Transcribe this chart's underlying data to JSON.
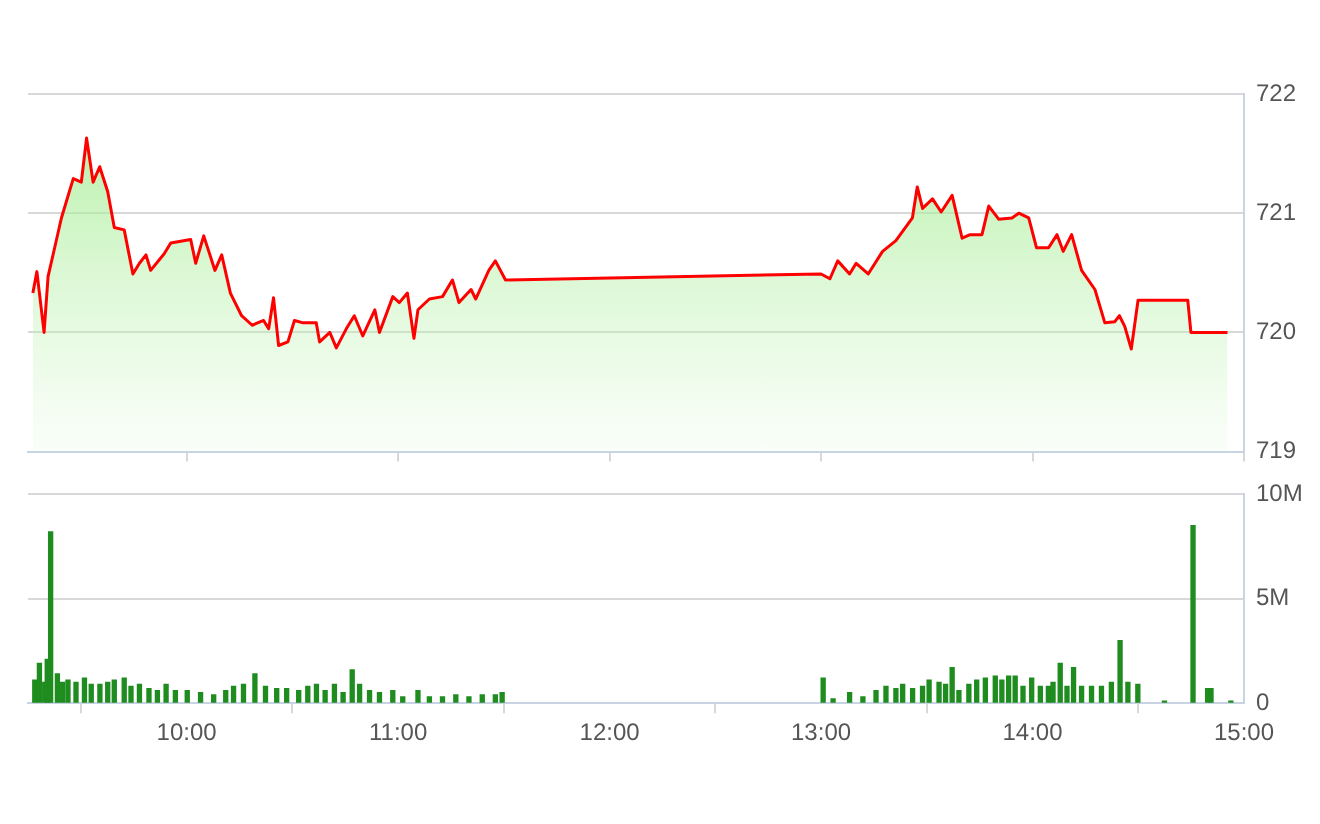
{
  "chart_data": [
    {
      "type": "area",
      "xlim": [
        9.25,
        15
      ],
      "xticks": [
        {
          "value": 10,
          "label": null
        },
        {
          "value": 11,
          "label": null
        },
        {
          "value": 12,
          "label": null
        },
        {
          "value": 13,
          "label": null
        },
        {
          "value": 14,
          "label": null
        },
        {
          "value": 15,
          "label": null
        }
      ],
      "ylim": [
        719,
        722
      ],
      "yticks": [
        719,
        720,
        721,
        722
      ],
      "grid": "y",
      "legend": false,
      "tick_labels": "y",
      "x": [
        9.273,
        9.292,
        9.326,
        9.345,
        9.376,
        9.408,
        9.464,
        9.502,
        9.527,
        9.558,
        9.589,
        9.627,
        9.658,
        9.705,
        9.746,
        9.777,
        9.808,
        9.83,
        9.894,
        9.925,
        10.019,
        10.043,
        10.081,
        10.134,
        10.166,
        10.207,
        10.26,
        10.31,
        10.364,
        10.388,
        10.411,
        10.435,
        10.479,
        10.51,
        10.551,
        10.613,
        10.629,
        10.677,
        10.708,
        10.755,
        10.793,
        10.833,
        10.89,
        10.912,
        10.975,
        11.006,
        11.044,
        11.075,
        11.094,
        11.148,
        11.21,
        11.257,
        11.288,
        11.345,
        11.367,
        11.429,
        11.46,
        11.508,
        13.0,
        13.042,
        13.079,
        13.135,
        13.166,
        13.223,
        13.291,
        13.354,
        13.432,
        13.455,
        13.48,
        13.527,
        13.568,
        13.62,
        13.667,
        13.705,
        13.761,
        13.793,
        13.84,
        13.903,
        13.935,
        13.982,
        14.019,
        14.076,
        14.116,
        14.145,
        14.185,
        14.232,
        14.295,
        14.342,
        14.389,
        14.411,
        14.436,
        14.467,
        14.499,
        14.734,
        14.749,
        14.922
      ],
      "series": [
        {
          "color": "#ff0000",
          "values": [
            720.33,
            720.51,
            720.0,
            720.47,
            720.71,
            720.96,
            721.29,
            721.26,
            721.63,
            721.26,
            721.39,
            721.18,
            720.88,
            720.86,
            720.49,
            720.58,
            720.65,
            720.52,
            720.66,
            720.75,
            720.78,
            720.58,
            720.81,
            720.52,
            720.65,
            720.33,
            720.14,
            720.06,
            720.1,
            720.03,
            720.29,
            719.89,
            719.92,
            720.1,
            720.08,
            720.08,
            719.92,
            720.0,
            719.87,
            720.03,
            720.14,
            719.97,
            720.19,
            720.0,
            720.3,
            720.25,
            720.33,
            719.95,
            720.19,
            720.28,
            720.3,
            720.44,
            720.25,
            720.36,
            720.28,
            720.52,
            720.6,
            720.44,
            720.49,
            720.45,
            720.6,
            720.49,
            720.58,
            720.49,
            720.68,
            720.77,
            720.96,
            721.22,
            721.04,
            721.12,
            721.01,
            721.15,
            720.79,
            720.82,
            720.82,
            721.06,
            720.95,
            720.96,
            721.0,
            720.96,
            720.71,
            720.71,
            720.82,
            720.68,
            720.82,
            720.52,
            720.36,
            720.08,
            720.09,
            720.14,
            720.05,
            719.86,
            720.27,
            720.27,
            720.0,
            720.0
          ]
        }
      ]
    },
    {
      "type": "bar",
      "xlim": [
        9.25,
        15
      ],
      "xticks": [
        {
          "value": 10,
          "label": "10:00"
        },
        {
          "value": 11,
          "label": "11:00"
        },
        {
          "value": 12,
          "label": "12:00"
        },
        {
          "value": 13,
          "label": "13:00"
        },
        {
          "value": 14,
          "label": "14:00"
        },
        {
          "value": 15,
          "label": "15:00"
        }
      ],
      "ylim": [
        0,
        10
      ],
      "yticks": [
        {
          "value": 0,
          "label": "0"
        },
        {
          "value": 5,
          "label": "5M"
        },
        {
          "value": 10,
          "label": "10M"
        }
      ],
      "grid": "y",
      "legend": false,
      "x": [
        9.282,
        9.304,
        9.329,
        9.341,
        9.357,
        9.389,
        9.414,
        9.439,
        9.477,
        9.517,
        9.549,
        9.59,
        9.627,
        9.658,
        9.705,
        9.737,
        9.777,
        9.822,
        9.862,
        9.903,
        9.947,
        10.003,
        10.066,
        10.128,
        10.185,
        10.222,
        10.269,
        10.323,
        10.373,
        10.426,
        10.473,
        10.53,
        10.573,
        10.614,
        10.655,
        10.699,
        10.74,
        10.783,
        10.818,
        10.865,
        10.912,
        10.975,
        11.022,
        11.094,
        11.148,
        11.21,
        11.273,
        11.335,
        11.398,
        11.46,
        11.492,
        13.01,
        13.057,
        13.135,
        13.198,
        13.26,
        13.307,
        13.354,
        13.386,
        13.433,
        13.48,
        13.511,
        13.558,
        13.589,
        13.62,
        13.652,
        13.699,
        13.736,
        13.777,
        13.824,
        13.855,
        13.887,
        13.918,
        13.955,
        13.996,
        14.037,
        14.075,
        14.097,
        14.131,
        14.163,
        14.194,
        14.232,
        14.279,
        14.326,
        14.373,
        14.414,
        14.451,
        14.498,
        14.624,
        14.759,
        14.828,
        14.844,
        14.938
      ],
      "series": [
        {
          "color": "#1e8c1e",
          "values": [
            1.1,
            1.9,
            1.0,
            2.1,
            8.2,
            1.4,
            1.0,
            1.1,
            1.0,
            1.2,
            0.9,
            0.9,
            1.0,
            1.1,
            1.2,
            0.8,
            0.9,
            0.7,
            0.6,
            0.9,
            0.6,
            0.6,
            0.5,
            0.4,
            0.6,
            0.8,
            0.9,
            1.4,
            0.8,
            0.7,
            0.7,
            0.6,
            0.8,
            0.9,
            0.6,
            0.9,
            0.5,
            1.6,
            0.9,
            0.6,
            0.5,
            0.6,
            0.3,
            0.6,
            0.3,
            0.3,
            0.4,
            0.3,
            0.4,
            0.4,
            0.5,
            1.2,
            0.2,
            0.5,
            0.3,
            0.6,
            0.8,
            0.7,
            0.9,
            0.7,
            0.8,
            1.1,
            1.0,
            0.9,
            1.7,
            0.6,
            0.9,
            1.1,
            1.2,
            1.3,
            1.1,
            1.3,
            1.3,
            0.8,
            1.2,
            0.8,
            0.8,
            1.0,
            1.9,
            0.8,
            1.7,
            0.8,
            0.8,
            0.8,
            1.0,
            3.0,
            1.0,
            0.9,
            0.1,
            8.5,
            0.7,
            0.7,
            0.1
          ]
        }
      ]
    }
  ]
}
